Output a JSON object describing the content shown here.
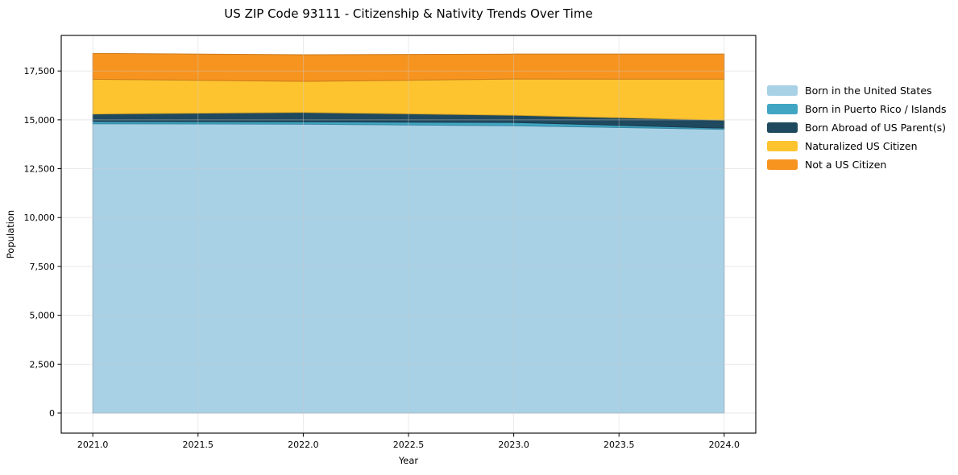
{
  "chart_data": {
    "type": "area",
    "stacked": true,
    "title": "US ZIP Code 93111 - Citizenship & Nativity Trends Over Time",
    "xlabel": "Year",
    "ylabel": "Population",
    "x": [
      2021,
      2022,
      2023,
      2024
    ],
    "series": [
      {
        "name": "Born in the United States",
        "color": "#a8d1e6",
        "values": [
          14800,
          14780,
          14700,
          14515
        ]
      },
      {
        "name": "Born in Puerto Rico / Islands",
        "color": "#41a6c4",
        "values": [
          120,
          120,
          165,
          60
        ]
      },
      {
        "name": "Born Abroad of US Parent(s)",
        "color": "#1f495e",
        "values": [
          380,
          480,
          370,
          410
        ]
      },
      {
        "name": "Naturalized US Citizen",
        "color": "#fdc430",
        "values": [
          1780,
          1590,
          1855,
          2100
        ]
      },
      {
        "name": "Not a US Citizen",
        "color": "#f79420",
        "values": [
          1320,
          1360,
          1275,
          1280
        ]
      }
    ],
    "x_tick_values": [
      2021.0,
      2021.5,
      2022.0,
      2022.5,
      2023.0,
      2023.5,
      2024.0
    ],
    "x_tick_labels": [
      "2021.0",
      "2021.5",
      "2022.0",
      "2022.5",
      "2023.0",
      "2023.5",
      "2024.0"
    ],
    "y_tick_values": [
      0,
      2500,
      5000,
      7500,
      10000,
      12500,
      15000,
      17500
    ],
    "y_tick_labels": [
      "0",
      "2,500",
      "5,000",
      "7,500",
      "10,000",
      "12,500",
      "15,000",
      "17,500"
    ],
    "xlim": [
      2020.85,
      2024.15
    ],
    "ylim": [
      -1030,
      19320
    ],
    "grid": true,
    "legend_position": "right",
    "colors": {
      "spine": "#000000",
      "grid": "#cccccc",
      "tick_text": "#000000"
    }
  }
}
